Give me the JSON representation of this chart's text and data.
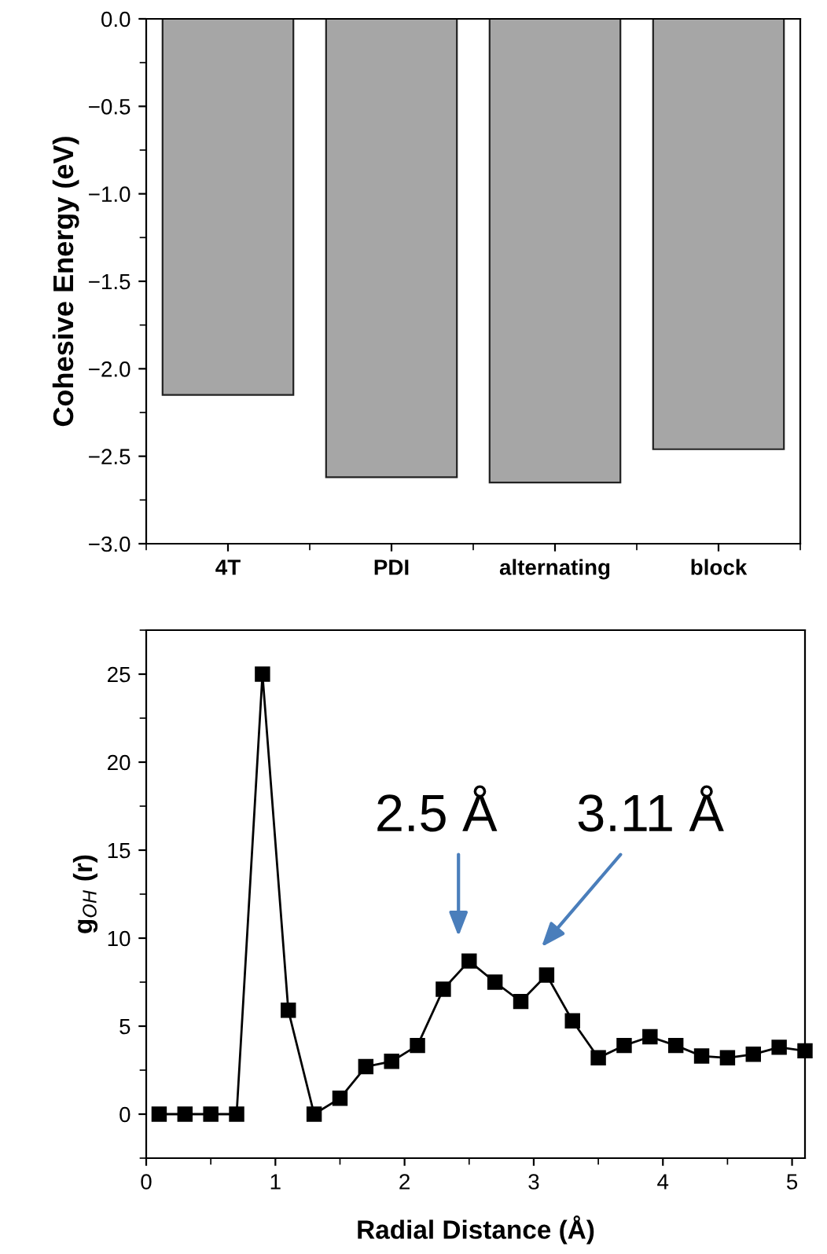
{
  "chart_data": [
    {
      "type": "bar",
      "ylabel": "Cohesive Energy (eV)",
      "categories": [
        "4T",
        "PDI",
        "alternating",
        "block"
      ],
      "values": [
        -2.15,
        -2.62,
        -2.65,
        -2.46
      ],
      "color": "#a6a6a6",
      "ylim": [
        -3.0,
        0.0
      ],
      "yticks": [
        {
          "value": -3.0,
          "label": "−3.0"
        },
        {
          "value": -2.5,
          "label": "−2.5"
        },
        {
          "value": -2.0,
          "label": "−2.0"
        },
        {
          "value": -1.5,
          "label": "−1.5"
        },
        {
          "value": -1.0,
          "label": "−1.0"
        },
        {
          "value": -0.5,
          "label": "−0.5"
        },
        {
          "value": 0.0,
          "label": "0.0"
        }
      ],
      "grid": false,
      "legend": false
    },
    {
      "type": "line",
      "xlabel": "Radial Distance (Å)",
      "ylabel": "g$_{OH}$ (r)",
      "marker": "square",
      "line_style": "solid",
      "x": [
        0.1,
        0.3,
        0.5,
        0.7,
        0.9,
        1.1,
        1.3,
        1.5,
        1.7,
        1.9,
        2.1,
        2.3,
        2.5,
        2.7,
        2.9,
        3.1,
        3.3,
        3.5,
        3.7,
        3.9,
        4.1,
        4.3,
        4.5,
        4.7,
        4.9,
        5.1
      ],
      "values": [
        0,
        0,
        0,
        0,
        25,
        5.9,
        0,
        0.9,
        2.7,
        3.0,
        3.9,
        7.1,
        8.7,
        7.5,
        6.4,
        7.9,
        5.3,
        3.2,
        3.9,
        4.4,
        3.9,
        3.3,
        3.2,
        3.4,
        3.8,
        3.6
      ],
      "color": "#000000",
      "xlim": [
        0,
        5.1
      ],
      "xticks": [
        0,
        1,
        2,
        3,
        4,
        5
      ],
      "ylim": [
        -2.5,
        27.5
      ],
      "yticks": [
        0,
        5,
        10,
        15,
        20,
        25
      ],
      "annotations": [
        "2.5 Å",
        "3.11 Å"
      ],
      "grid": false,
      "legend": false
    }
  ]
}
